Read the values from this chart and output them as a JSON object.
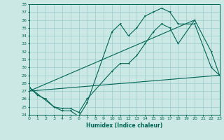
{
  "xlabel": "Humidex (Indice chaleur)",
  "bg_color": "#cce8e4",
  "grid_color": "#99cccc",
  "line_color": "#006655",
  "xmin": 0,
  "xmax": 23,
  "ymin": 24,
  "ymax": 38,
  "series1_x": [
    0,
    1,
    2,
    3,
    4,
    5,
    6,
    7,
    10,
    11,
    12,
    13,
    14,
    15,
    16,
    17,
    18,
    20,
    22,
    23
  ],
  "series1_y": [
    27.5,
    26.5,
    26.0,
    25.0,
    24.5,
    24.5,
    23.8,
    25.5,
    34.5,
    35.5,
    34.0,
    35.0,
    36.5,
    37.0,
    37.5,
    37.0,
    35.5,
    35.5,
    30.0,
    29.0
  ],
  "series2_x": [
    0,
    3,
    4,
    5,
    6,
    7,
    10,
    11,
    12,
    13,
    14,
    15,
    16,
    17,
    18,
    20,
    22,
    23
  ],
  "series2_y": [
    27.5,
    25.0,
    24.8,
    24.8,
    24.3,
    26.0,
    29.5,
    30.5,
    30.5,
    31.5,
    33.0,
    34.5,
    35.5,
    35.0,
    33.0,
    36.0,
    32.0,
    29.0
  ],
  "trend1_x": [
    0,
    23
  ],
  "trend1_y": [
    27.0,
    29.0
  ],
  "trend2_x": [
    0,
    20
  ],
  "trend2_y": [
    27.0,
    36.0
  ]
}
